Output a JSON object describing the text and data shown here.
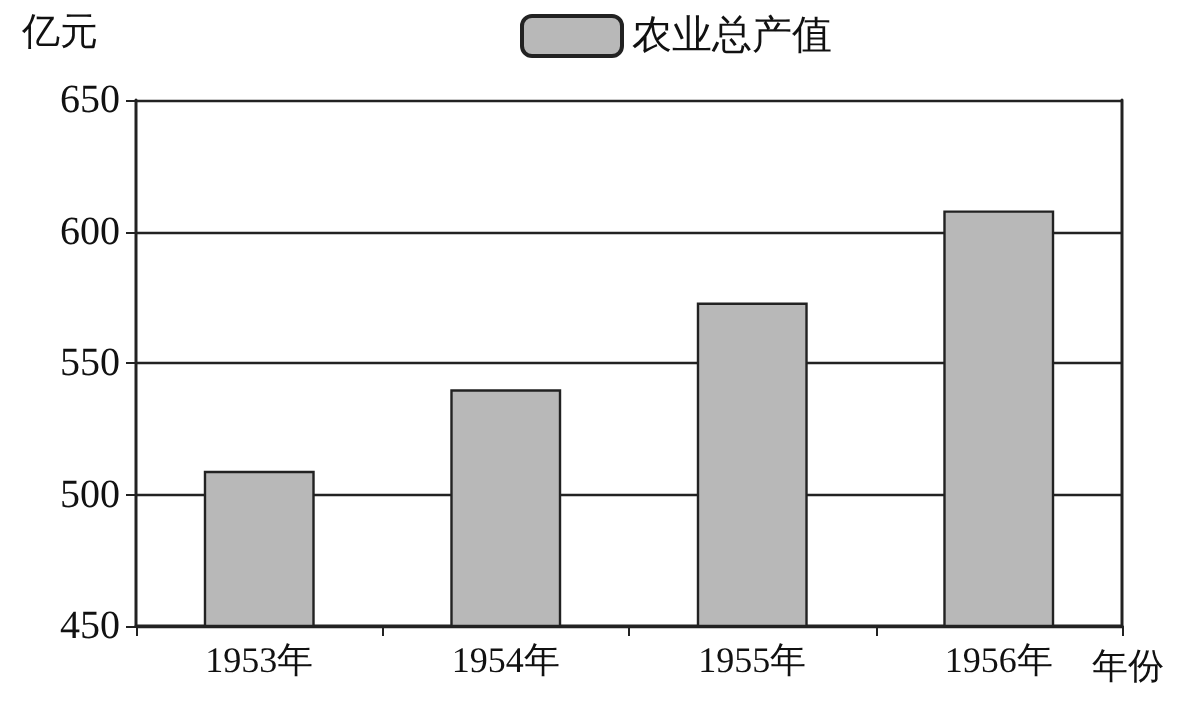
{
  "chart_data": {
    "type": "bar",
    "xlabel": "年份",
    "ylabel": "亿元",
    "categories": [
      "1953年",
      "1954年",
      "1955年",
      "1956年"
    ],
    "series": [
      {
        "name": "农业总产值",
        "color": "#b8b8b8",
        "values": [
          509,
          540,
          573,
          608
        ]
      }
    ],
    "ylim": [
      450,
      650
    ],
    "yticks": [
      450,
      500,
      550,
      600,
      650
    ],
    "grid": "y",
    "legend": "top"
  }
}
